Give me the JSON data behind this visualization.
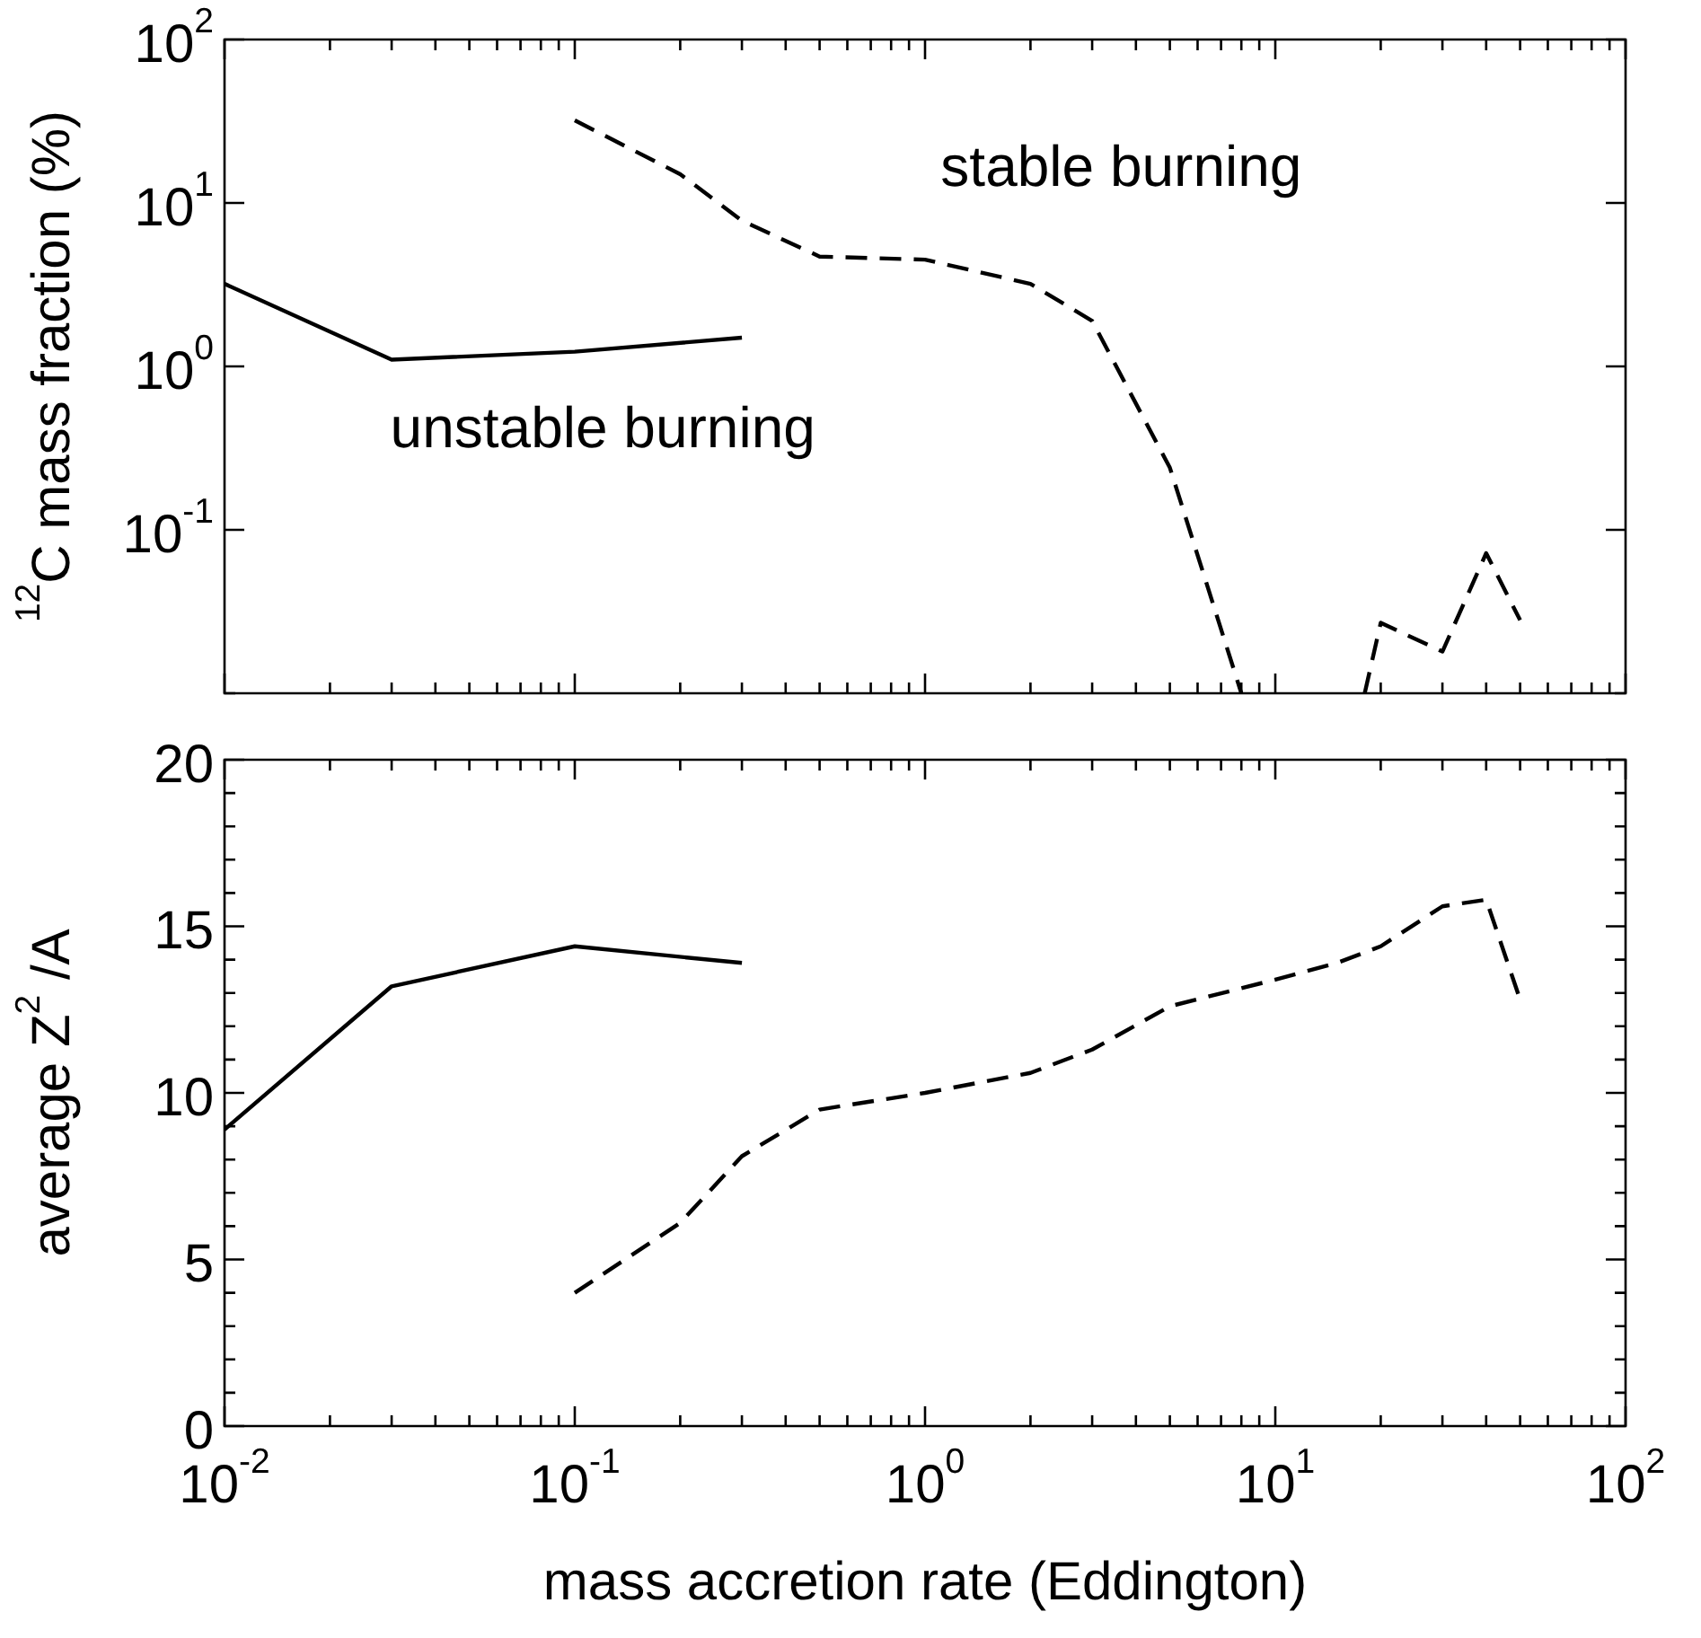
{
  "chart_data": [
    {
      "type": "line",
      "ylabel": "$^{12}$C mass fraction (%)",
      "log": "xy",
      "grid": false,
      "legend": false,
      "tick_labels": "y",
      "marker": "none",
      "xlim": [
        0.01,
        100
      ],
      "ylim": [
        0.01,
        100
      ],
      "xticks": [
        0.01,
        {
          "value": 0.02,
          "label": null
        },
        {
          "value": 0.03,
          "label": null
        },
        {
          "value": 0.04,
          "label": null
        },
        {
          "value": 0.05,
          "label": null
        },
        {
          "value": 0.06,
          "label": null
        },
        {
          "value": 0.07,
          "label": null
        },
        {
          "value": 0.08,
          "label": null
        },
        {
          "value": 0.09,
          "label": null
        },
        0.1,
        {
          "value": 0.2,
          "label": null
        },
        {
          "value": 0.3,
          "label": null
        },
        {
          "value": 0.4,
          "label": null
        },
        {
          "value": 0.5,
          "label": null
        },
        {
          "value": 0.6,
          "label": null
        },
        {
          "value": 0.7,
          "label": null
        },
        {
          "value": 0.8,
          "label": null
        },
        {
          "value": 0.9,
          "label": null
        },
        1,
        {
          "value": 2,
          "label": null
        },
        {
          "value": 3,
          "label": null
        },
        {
          "value": 4,
          "label": null
        },
        {
          "value": 5,
          "label": null
        },
        {
          "value": 6,
          "label": null
        },
        {
          "value": 7,
          "label": null
        },
        {
          "value": 8,
          "label": null
        },
        {
          "value": 9,
          "label": null
        },
        10,
        {
          "value": 20,
          "label": null
        },
        {
          "value": 30,
          "label": null
        },
        {
          "value": 40,
          "label": null
        },
        {
          "value": 50,
          "label": null
        },
        {
          "value": 60,
          "label": null
        },
        {
          "value": 70,
          "label": null
        },
        {
          "value": 80,
          "label": null
        },
        {
          "value": 90,
          "label": null
        },
        100
      ],
      "yticks": [
        {
          "value": 0.01,
          "label": null
        },
        {
          "value": 0.1,
          "label": "10$^{-1}$"
        },
        {
          "value": 1,
          "label": "10$^{0}$"
        },
        {
          "value": 10,
          "label": "10$^{1}$"
        },
        {
          "value": 100,
          "label": "10$^{2}$"
        }
      ],
      "annotations": [
        "stable burning",
        "unstable burning"
      ],
      "series": [
        {
          "color": "#000000",
          "line_style": "solid",
          "x": [
            0.01,
            0.03,
            0.1,
            0.3
          ],
          "values": [
            3.2,
            1.1,
            1.23,
            1.5
          ]
        },
        {
          "color": "#000000",
          "line_style": "dashed",
          "x": [
            0.1,
            0.2,
            0.3,
            0.5,
            1,
            2,
            3,
            5,
            8,
            10,
            18,
            20,
            30,
            40,
            50
          ],
          "values": [
            32,
            15,
            7.8,
            4.7,
            4.5,
            3.2,
            1.9,
            0.24,
            0.01,
            null,
            0.01,
            0.027,
            0.018,
            0.072,
            0.028
          ]
        }
      ]
    },
    {
      "type": "line",
      "xlabel": "mass accretion rate (Eddington)",
      "ylabel": "average Z$^{2}$ /A",
      "log": "x",
      "grid": false,
      "legend": false,
      "marker": "none",
      "xlim": [
        0.01,
        100
      ],
      "ylim": [
        0,
        20
      ],
      "xticks": [
        {
          "value": 0.01,
          "label": "10$^{-2}$"
        },
        {
          "value": 0.02,
          "label": null
        },
        {
          "value": 0.03,
          "label": null
        },
        {
          "value": 0.04,
          "label": null
        },
        {
          "value": 0.05,
          "label": null
        },
        {
          "value": 0.06,
          "label": null
        },
        {
          "value": 0.07,
          "label": null
        },
        {
          "value": 0.08,
          "label": null
        },
        {
          "value": 0.09,
          "label": null
        },
        {
          "value": 0.1,
          "label": "10$^{-1}$"
        },
        {
          "value": 0.2,
          "label": null
        },
        {
          "value": 0.3,
          "label": null
        },
        {
          "value": 0.4,
          "label": null
        },
        {
          "value": 0.5,
          "label": null
        },
        {
          "value": 0.6,
          "label": null
        },
        {
          "value": 0.7,
          "label": null
        },
        {
          "value": 0.8,
          "label": null
        },
        {
          "value": 0.9,
          "label": null
        },
        {
          "value": 1,
          "label": "10$^{0}$"
        },
        {
          "value": 2,
          "label": null
        },
        {
          "value": 3,
          "label": null
        },
        {
          "value": 4,
          "label": null
        },
        {
          "value": 5,
          "label": null
        },
        {
          "value": 6,
          "label": null
        },
        {
          "value": 7,
          "label": null
        },
        {
          "value": 8,
          "label": null
        },
        {
          "value": 9,
          "label": null
        },
        {
          "value": 10,
          "label": "10$^{1}$"
        },
        {
          "value": 20,
          "label": null
        },
        {
          "value": 30,
          "label": null
        },
        {
          "value": 40,
          "label": null
        },
        {
          "value": 50,
          "label": null
        },
        {
          "value": 60,
          "label": null
        },
        {
          "value": 70,
          "label": null
        },
        {
          "value": 80,
          "label": null
        },
        {
          "value": 90,
          "label": null
        },
        {
          "value": 100,
          "label": "10$^{2}$"
        }
      ],
      "yticks": [
        0,
        {
          "value": 1,
          "label": null
        },
        {
          "value": 2,
          "label": null
        },
        {
          "value": 3,
          "label": null
        },
        {
          "value": 4,
          "label": null
        },
        5,
        {
          "value": 6,
          "label": null
        },
        {
          "value": 7,
          "label": null
        },
        {
          "value": 8,
          "label": null
        },
        {
          "value": 9,
          "label": null
        },
        10,
        {
          "value": 11,
          "label": null
        },
        {
          "value": 12,
          "label": null
        },
        {
          "value": 13,
          "label": null
        },
        {
          "value": 14,
          "label": null
        },
        15,
        {
          "value": 16,
          "label": null
        },
        {
          "value": 17,
          "label": null
        },
        {
          "value": 18,
          "label": null
        },
        {
          "value": 19,
          "label": null
        },
        20
      ],
      "series": [
        {
          "color": "#000000",
          "line_style": "solid",
          "x": [
            0.01,
            0.03,
            0.1,
            0.3
          ],
          "values": [
            8.9,
            13.2,
            14.4,
            13.9
          ]
        },
        {
          "color": "#000000",
          "line_style": "dashed",
          "x": [
            0.1,
            0.2,
            0.3,
            0.5,
            1,
            2,
            3,
            5,
            10,
            15,
            20,
            30,
            40,
            50
          ],
          "values": [
            4.0,
            6.1,
            8.1,
            9.5,
            10.0,
            10.6,
            11.3,
            12.6,
            13.4,
            13.9,
            14.4,
            15.6,
            15.8,
            12.8
          ]
        }
      ]
    }
  ]
}
